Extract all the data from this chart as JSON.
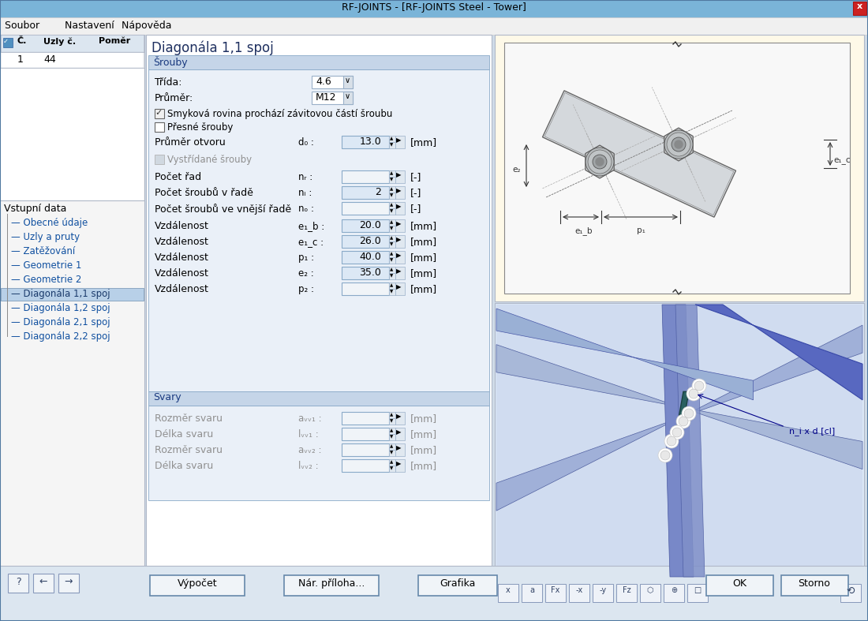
{
  "title_bar": "RF-JOINTS - [RF-JOINTS Steel - Tower]",
  "title_bar_bg": "#7ab4d8",
  "close_btn_bg": "#cc2222",
  "menu_items": [
    "Soubor",
    "Nastavení",
    "Nápověda"
  ],
  "left_table_headers": [
    "Č.",
    "Uzly č.",
    "Poměr"
  ],
  "left_table_row": [
    "1",
    "44",
    ""
  ],
  "tree_header": "Vstupní data",
  "tree_items": [
    "Obecné údaje",
    "Uzly a pruty",
    "Zatěžování",
    "Geometrie 1",
    "Geometrie 2",
    "Diagonála 1,1 spoj",
    "Diagonála 1,2 spoj",
    "Diagonála 2,1 spoj",
    "Diagonála 2,2 spoj"
  ],
  "tree_selected": "Diagonála 1,1 spoj",
  "section_title": "Diagonála 1,1 spoj",
  "srouby_header": "Šrouby",
  "svary_header": "Svary",
  "window_bg": "#d0dce8"
}
